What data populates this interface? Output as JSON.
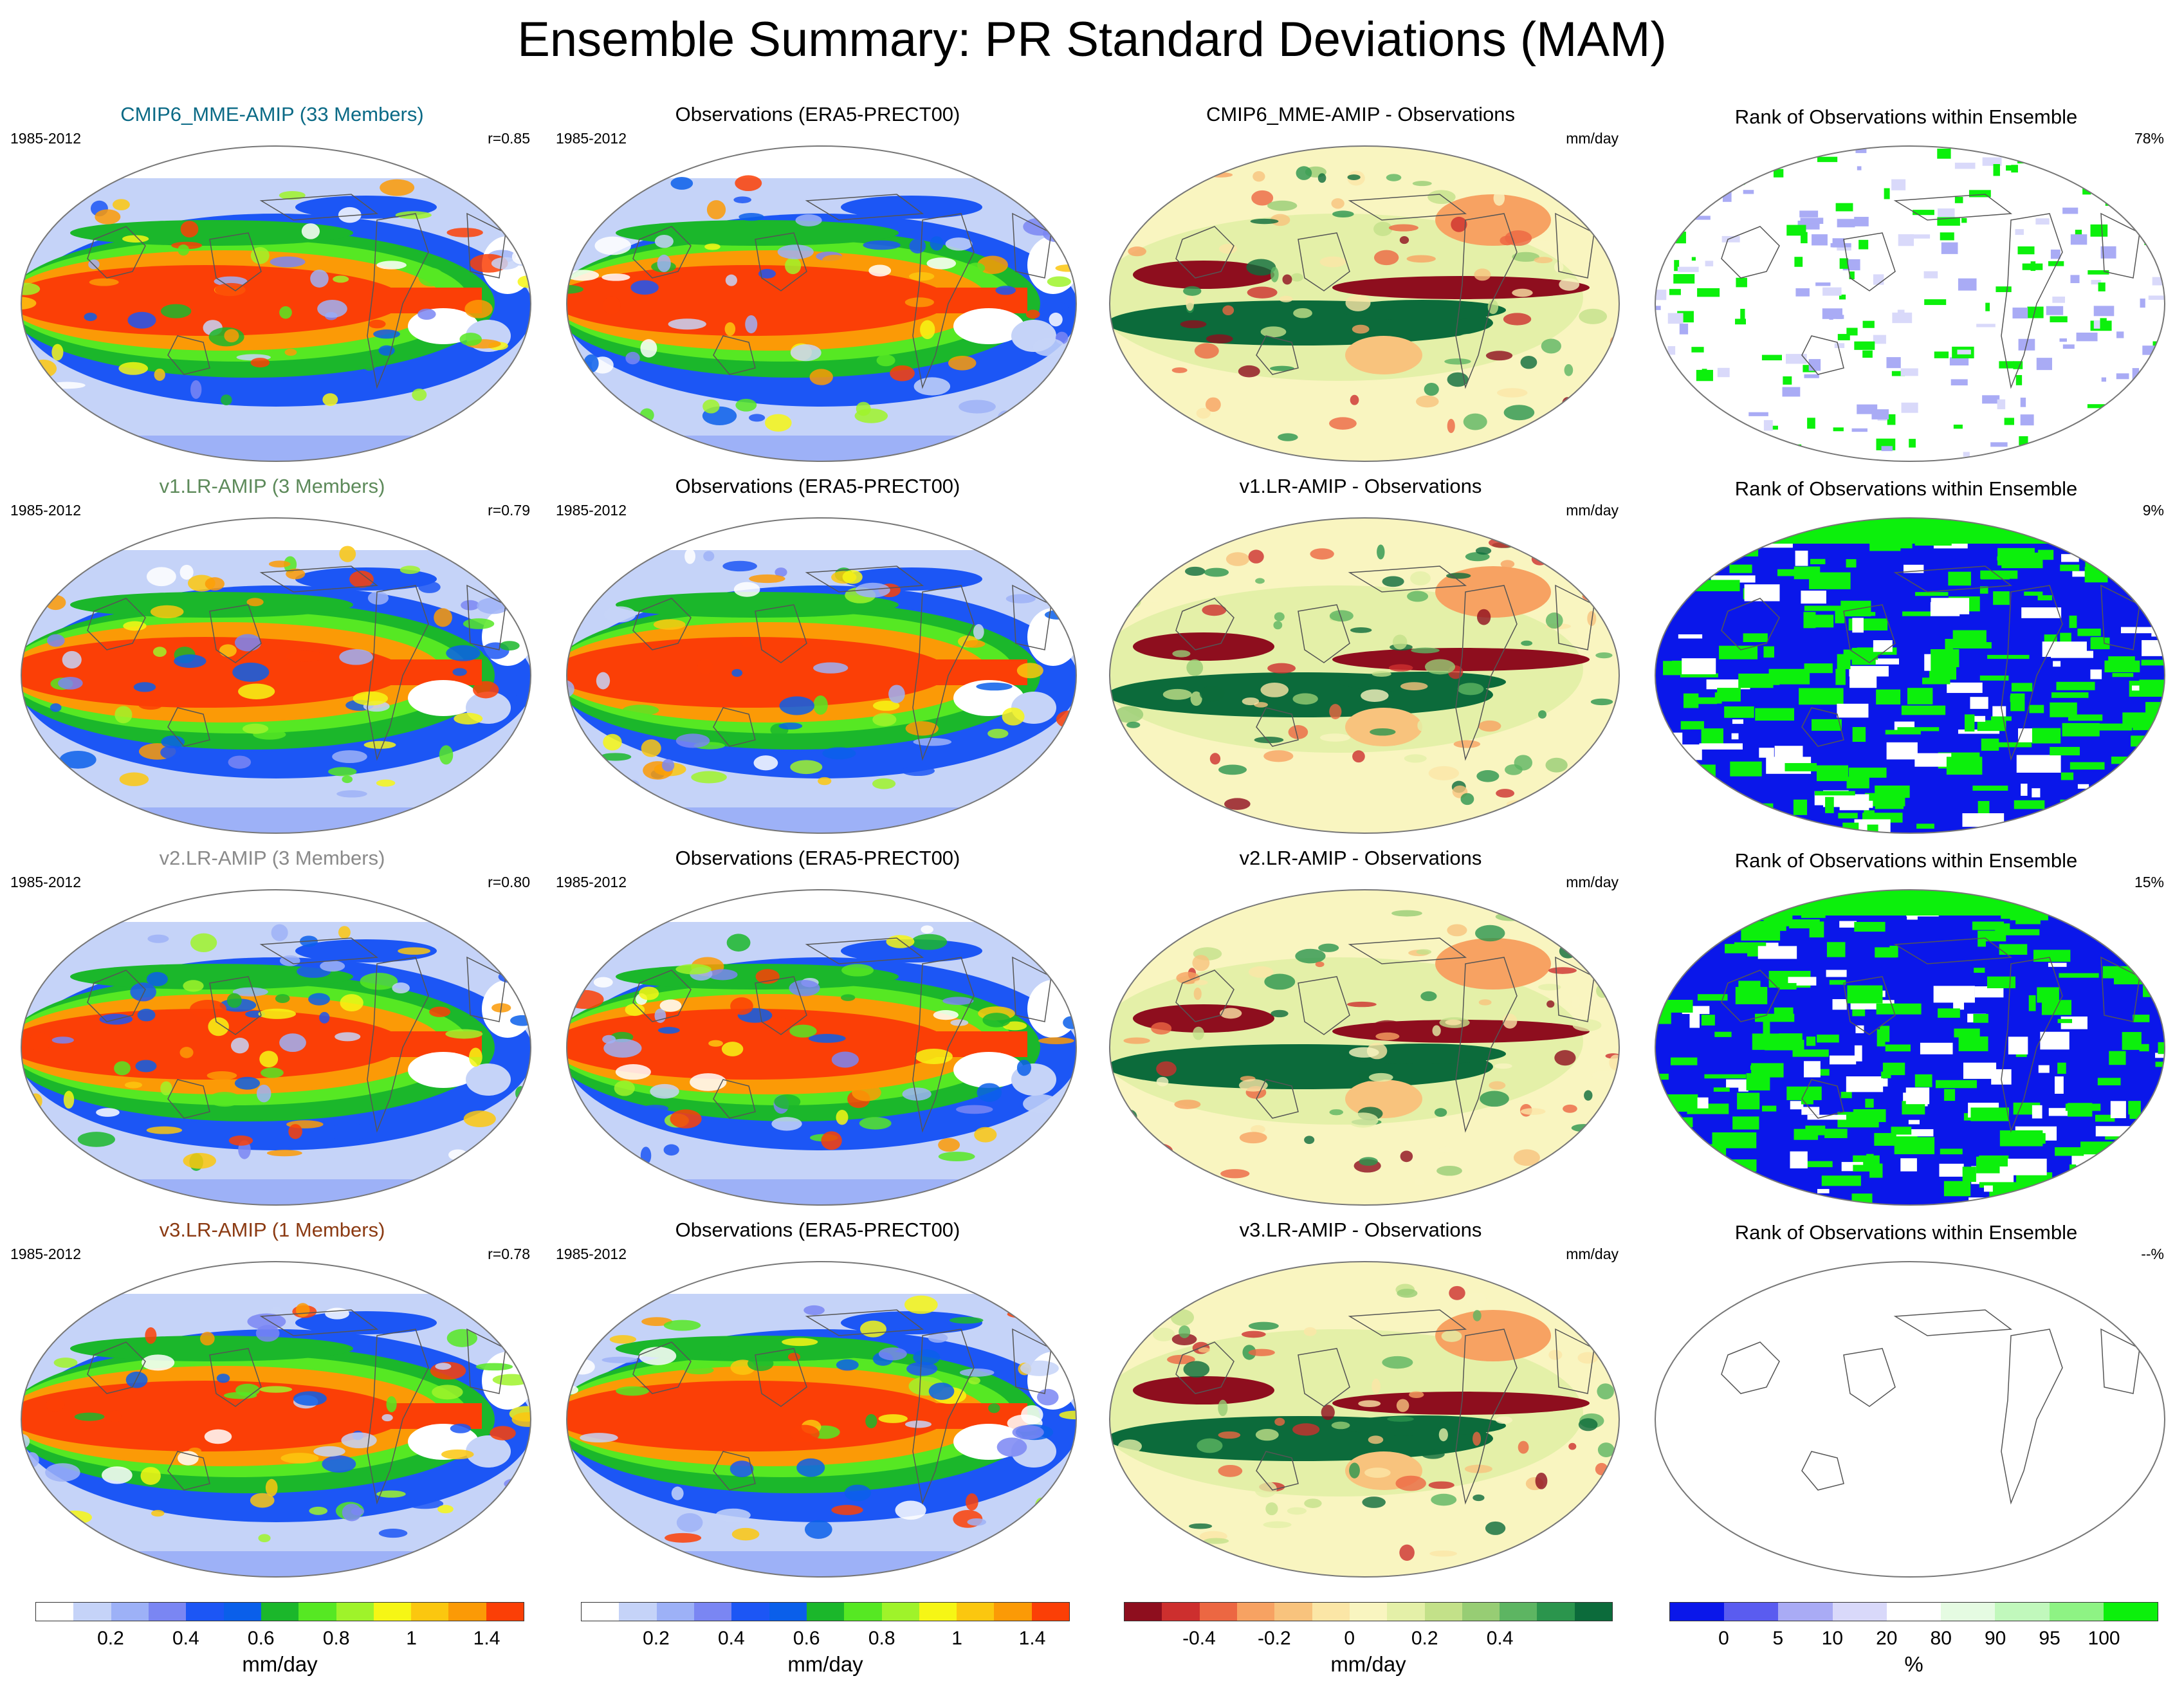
{
  "title": "Ensemble Summary: PR Standard Deviations (MAM)",
  "colors": {
    "std": [
      "#ffffff",
      "#c5d3f8",
      "#9db1f7",
      "#7a86f3",
      "#1c56f5",
      "#0a5fea",
      "#1bb72b",
      "#56e823",
      "#9ff32a",
      "#f6f615",
      "#fbc70f",
      "#fb9a06",
      "#fb3f06"
    ],
    "diff": [
      "#8e0e1e",
      "#cd2f2e",
      "#ec6742",
      "#f7a262",
      "#f8c37d",
      "#fbe6a6",
      "#f9f5c0",
      "#e4f0a8",
      "#c3e189",
      "#97cd74",
      "#5db562",
      "#2b954d",
      "#0c6b3b"
    ],
    "rank": [
      "#0a17ea",
      "#5a5cf0",
      "#a9abf5",
      "#d9d9fa",
      "#ffffff",
      "#e5fbe2",
      "#c1f8bc",
      "#8ef384",
      "#0cf00c"
    ]
  },
  "rows": [
    {
      "model": {
        "title": "CMIP6_MME-AMIP (33 Members)",
        "title_color": "#0b6a86",
        "period": "1985-2012",
        "corr": "r=0.85"
      },
      "obs": {
        "title": "Observations (ERA5-PRECT00)",
        "period": "1985-2012"
      },
      "diff": {
        "title": "CMIP6_MME-AMIP - Observations",
        "units": "mm/day"
      },
      "rank": {
        "title": "Rank of Observations within Ensemble",
        "pct": "78%",
        "pattern": "sparse"
      }
    },
    {
      "model": {
        "title": "v1.LR-AMIP (3 Members)",
        "title_color": "#5d8a5a",
        "period": "1985-2012",
        "corr": "r=0.79"
      },
      "obs": {
        "title": "Observations (ERA5-PRECT00)",
        "period": "1985-2012"
      },
      "diff": {
        "title": "v1.LR-AMIP - Observations",
        "units": "mm/day"
      },
      "rank": {
        "title": "Rank of Observations within Ensemble",
        "pct": "9%",
        "pattern": "dense"
      }
    },
    {
      "model": {
        "title": "v2.LR-AMIP (3 Members)",
        "title_color": "#8a8a8a",
        "period": "1985-2012",
        "corr": "r=0.80"
      },
      "obs": {
        "title": "Observations (ERA5-PRECT00)",
        "period": "1985-2012"
      },
      "diff": {
        "title": "v2.LR-AMIP - Observations",
        "units": "mm/day"
      },
      "rank": {
        "title": "Rank of Observations within Ensemble",
        "pct": "15%",
        "pattern": "dense"
      }
    },
    {
      "model": {
        "title": "v3.LR-AMIP (1 Members)",
        "title_color": "#8b3a12",
        "period": "1985-2012",
        "corr": "r=0.78"
      },
      "obs": {
        "title": "Observations (ERA5-PRECT00)",
        "period": "1985-2012"
      },
      "diff": {
        "title": "v3.LR-AMIP - Observations",
        "units": "mm/day"
      },
      "rank": {
        "title": "Rank of Observations within Ensemble",
        "pct": "--%",
        "pattern": "empty"
      }
    }
  ],
  "colorbars": {
    "model": {
      "ticks": [
        "0.2",
        "0.4",
        "0.6",
        "0.8",
        "1",
        "1.4"
      ],
      "units": "mm/day"
    },
    "obs": {
      "ticks": [
        "0.2",
        "0.4",
        "0.6",
        "0.8",
        "1",
        "1.4"
      ],
      "units": "mm/day"
    },
    "diff": {
      "ticks": [
        "-0.4",
        "-0.2",
        "0",
        "0.2",
        "0.4"
      ],
      "units": "mm/day"
    },
    "rank": {
      "ticks": [
        "0",
        "5",
        "10",
        "20",
        "80",
        "90",
        "95",
        "100"
      ],
      "units": "%"
    }
  }
}
